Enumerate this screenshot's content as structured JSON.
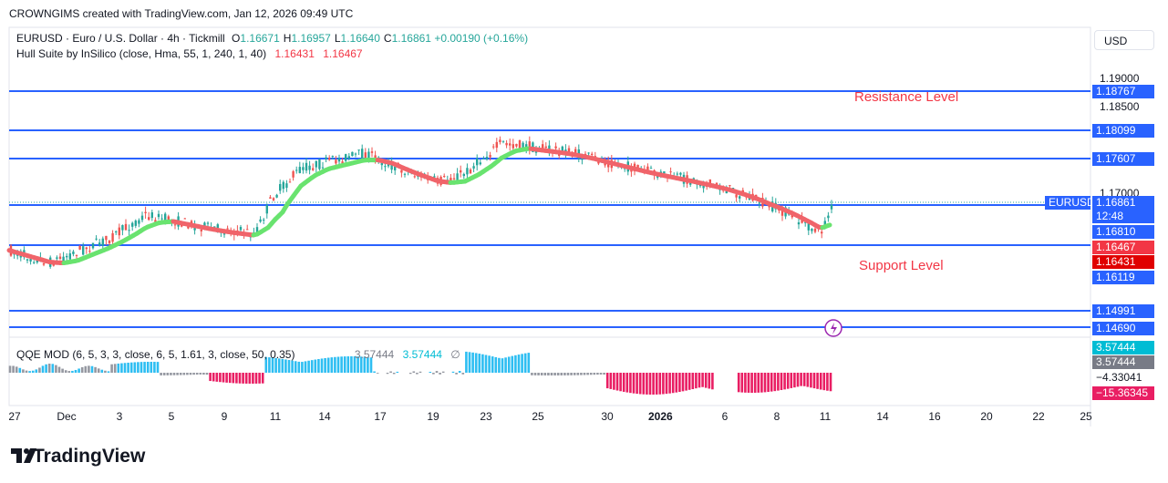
{
  "header": {
    "credit": "CROWNGIMS created with TradingView.com, Jan 12, 2026 09:49 UTC"
  },
  "legend": {
    "symbol": "EURUSD · Euro / U.S. Dollar · 4h · Tickmill",
    "ohlc": [
      {
        "key": "O",
        "value": "1.16671"
      },
      {
        "key": "H",
        "value": "1.16957"
      },
      {
        "key": "L",
        "value": "1.16640"
      },
      {
        "key": "C",
        "value": "1.16861"
      }
    ],
    "change": "+0.00190 (+0.16%)",
    "indicator": "Hull Suite by InSilico (close, Hma, 55, 1, 240, 1, 40)",
    "indicator_values": [
      "1.16431",
      "1.16467"
    ],
    "oscillator": "QQE MOD (6, 5, 3, 3, close, 6, 5, 1.61, 3, close, 50, 0.35)",
    "oscillator_values": [
      "3.57444",
      "3.57444",
      "∅"
    ]
  },
  "currency": "USD",
  "annotations": {
    "resistance": "Resistance Level",
    "support": "Support Level"
  },
  "price_axis": {
    "labels": [
      "1.19000",
      "1.18500",
      "1.17000"
    ],
    "tags": [
      "1.18767",
      "1.18099",
      "1.17607",
      "1.16810",
      "1.16467",
      "1.16431",
      "1.16119",
      "1.14991",
      "1.14690"
    ],
    "current": {
      "symbol": "EURUSD",
      "price": "1.16861",
      "countdown": "12:48"
    }
  },
  "oscillator_axis": {
    "tags": [
      "3.57444",
      "3.57444",
      "−4.33041",
      "−15.36345"
    ]
  },
  "time_axis": [
    "27",
    "Dec",
    "3",
    "5",
    "9",
    "11",
    "14",
    "17",
    "19",
    "23",
    "25",
    "30",
    "2026",
    "6",
    "8",
    "11",
    "14",
    "16",
    "20",
    "22",
    "25"
  ],
  "logo": "TradingView"
}
